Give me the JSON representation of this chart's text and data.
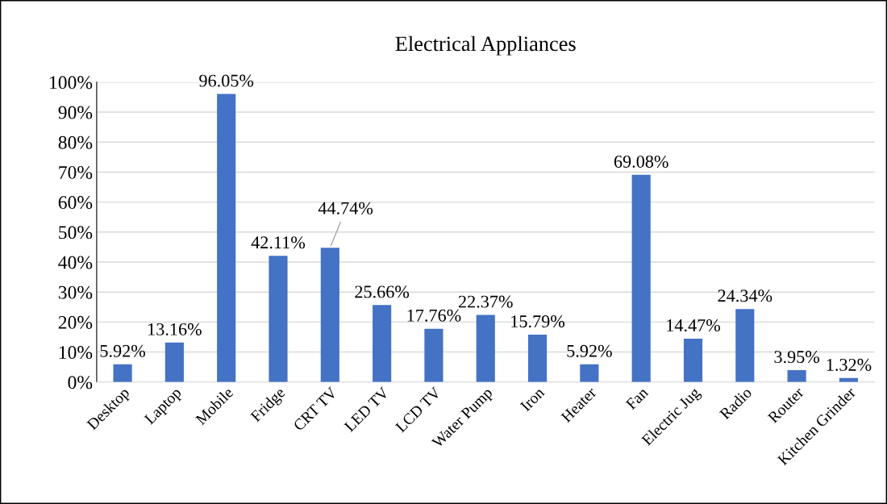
{
  "chart_data": {
    "type": "bar",
    "title": "Electrical Appliances",
    "categories": [
      "Desktop",
      "Laptop",
      "Mobile",
      "Fridge",
      "CRT TV",
      "LED TV",
      "LCD TV",
      "Water Pump",
      "Iron",
      "Heater",
      "Fan",
      "Electric Jug",
      "Radio",
      "Router",
      "Kitchen Grinder"
    ],
    "values": [
      5.92,
      13.16,
      96.05,
      42.11,
      44.74,
      25.66,
      17.76,
      22.37,
      15.79,
      5.92,
      69.08,
      14.47,
      24.34,
      3.95,
      1.32
    ],
    "value_labels": [
      "5.92%",
      "13.16%",
      "96.05%",
      "42.11%",
      "44.74%",
      "25.66%",
      "17.76%",
      "22.37%",
      "15.79%",
      "5.92%",
      "69.08%",
      "14.47%",
      "24.34%",
      "3.95%",
      "1.32%"
    ],
    "color": "#4472c4",
    "ylim": [
      0,
      100
    ],
    "yticks": [
      {
        "value": 0,
        "label": "0%"
      },
      {
        "value": 10,
        "label": "10%"
      },
      {
        "value": 20,
        "label": "20%"
      },
      {
        "value": 30,
        "label": "30%"
      },
      {
        "value": 40,
        "label": "40%"
      },
      {
        "value": 50,
        "label": "50%"
      },
      {
        "value": 60,
        "label": "60%"
      },
      {
        "value": 70,
        "label": "70%"
      },
      {
        "value": 80,
        "label": "80%"
      },
      {
        "value": 90,
        "label": "90%"
      },
      {
        "value": 100,
        "label": "100%"
      }
    ],
    "grid": "y",
    "legend": false
  }
}
